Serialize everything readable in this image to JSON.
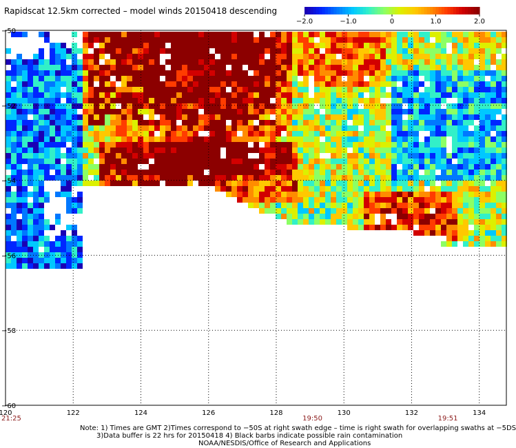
{
  "title": "Rapidscat 12.5km corrected – model winds 20150418 descending",
  "colorbar": {
    "ticks": [
      "−2.0",
      "−1.0",
      "0",
      "1.0",
      "2.0"
    ],
    "tick_values": [
      -2.0,
      -1.0,
      0,
      1.0,
      2.0
    ],
    "colors": [
      "#1a00b4",
      "#0026ff",
      "#0078ff",
      "#00c8ff",
      "#32f0c8",
      "#8cff64",
      "#dcf000",
      "#ffc800",
      "#ff8c00",
      "#ff3c00",
      "#d20000",
      "#8c0000"
    ]
  },
  "map": {
    "lon_ticks": [
      "120",
      "122",
      "124",
      "126",
      "128",
      "130",
      "132",
      "134"
    ],
    "lon_values": [
      120,
      122,
      124,
      126,
      128,
      130,
      132,
      134
    ],
    "lat_ticks": [
      "−50",
      "−52",
      "−54",
      "−56",
      "−58",
      "−60"
    ],
    "lat_values": [
      -50,
      -52,
      -54,
      -56,
      -58,
      -60
    ],
    "lon_range": [
      120,
      134.8
    ],
    "lat_range": [
      -50,
      -60
    ],
    "grid": "dotted",
    "time_labels": [
      {
        "text": "21:25",
        "lon": 120.0
      },
      {
        "text": "19:50",
        "lon": 128.9
      },
      {
        "text": "19:51",
        "lon": 132.9
      }
    ],
    "time_color": "#8b1a1a"
  },
  "notes": [
    "Note: 1) Times are GMT 2)Times correspond to −50S at right swath edge – time is right swath for overlapping swaths at −5DS",
    "3)Data buffer is 22 hrs for 20150418 4) Black barbs indicate possible rain contamination",
    "NOAA/NESDIS/Office of Research and Applications"
  ]
}
